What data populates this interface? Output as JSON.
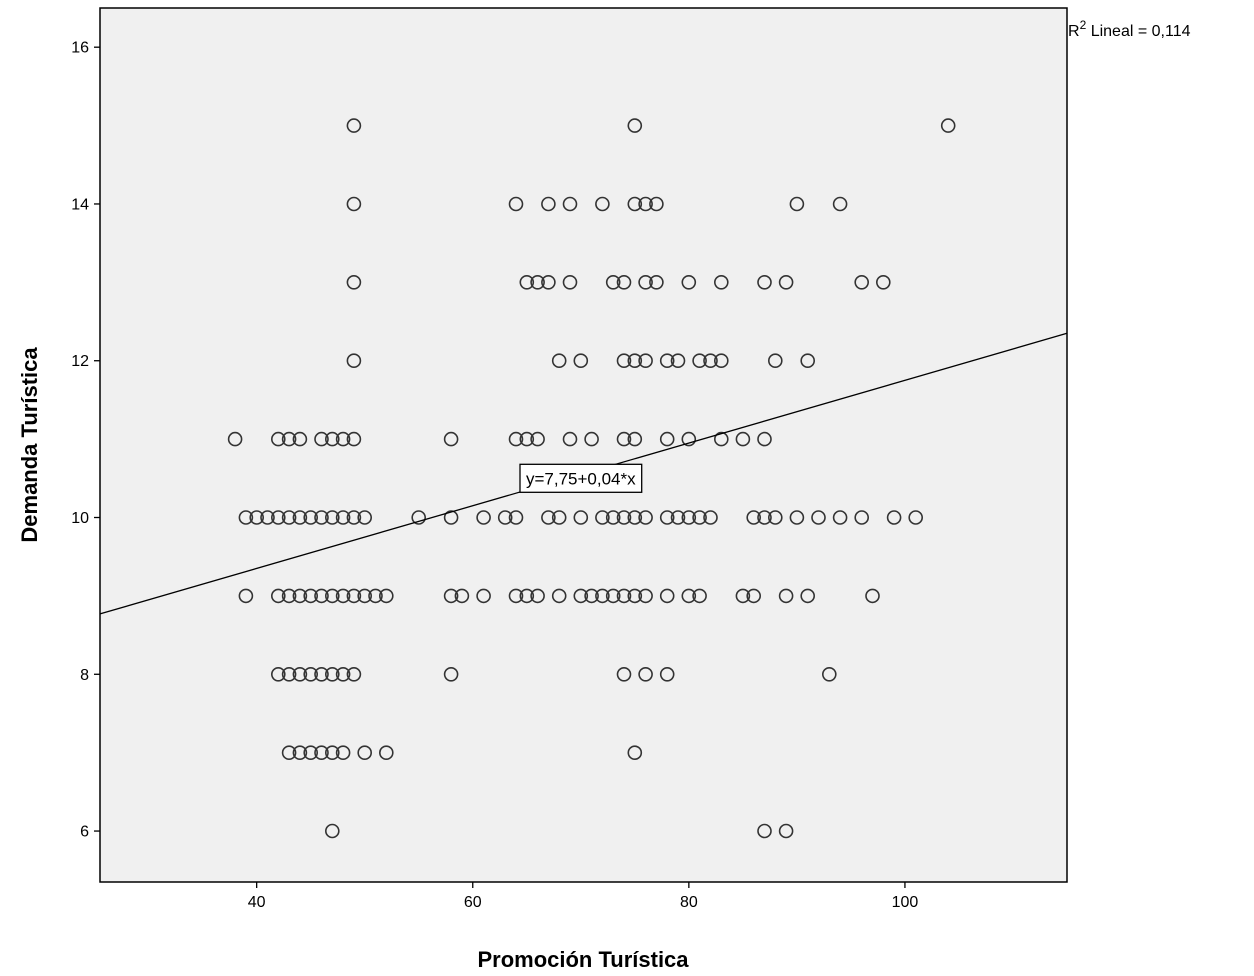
{
  "chart_data": {
    "type": "scatter",
    "title": "",
    "xlabel": "Promoción Turística",
    "ylabel": "Demanda Turística",
    "xlim": [
      25.5,
      115
    ],
    "ylim": [
      5.35,
      16.5
    ],
    "xticks": [
      40,
      60,
      80,
      100
    ],
    "yticks": [
      6,
      8,
      10,
      12,
      14,
      16
    ],
    "xtick_labels": [
      "40",
      "60",
      "80",
      "100"
    ],
    "ytick_labels": [
      "6",
      "8",
      "10",
      "12",
      "14",
      "16"
    ],
    "grid": false,
    "plot_background": "#f0f0f0",
    "marker_color": "#333333",
    "fit_line": {
      "intercept": 7.75,
      "slope": 0.04,
      "equation_label": "y=7,75+0,04*x",
      "label_x": 70,
      "label_y": 10.5
    },
    "r2_label": {
      "prefix": "R",
      "superscript": "2",
      "suffix": " Lineal = 0,114"
    },
    "points": [
      [
        49,
        15
      ],
      [
        75,
        15
      ],
      [
        104,
        15
      ],
      [
        49,
        14
      ],
      [
        64,
        14
      ],
      [
        67,
        14
      ],
      [
        69,
        14
      ],
      [
        72,
        14
      ],
      [
        75,
        14
      ],
      [
        76,
        14
      ],
      [
        77,
        14
      ],
      [
        90,
        14
      ],
      [
        94,
        14
      ],
      [
        49,
        13
      ],
      [
        65,
        13
      ],
      [
        66,
        13
      ],
      [
        67,
        13
      ],
      [
        69,
        13
      ],
      [
        73,
        13
      ],
      [
        74,
        13
      ],
      [
        76,
        13
      ],
      [
        77,
        13
      ],
      [
        80,
        13
      ],
      [
        83,
        13
      ],
      [
        87,
        13
      ],
      [
        89,
        13
      ],
      [
        96,
        13
      ],
      [
        98,
        13
      ],
      [
        49,
        12
      ],
      [
        68,
        12
      ],
      [
        70,
        12
      ],
      [
        74,
        12
      ],
      [
        75,
        12
      ],
      [
        76,
        12
      ],
      [
        78,
        12
      ],
      [
        79,
        12
      ],
      [
        81,
        12
      ],
      [
        82,
        12
      ],
      [
        83,
        12
      ],
      [
        88,
        12
      ],
      [
        91,
        12
      ],
      [
        38,
        11
      ],
      [
        42,
        11
      ],
      [
        43,
        11
      ],
      [
        44,
        11
      ],
      [
        46,
        11
      ],
      [
        47,
        11
      ],
      [
        48,
        11
      ],
      [
        49,
        11
      ],
      [
        58,
        11
      ],
      [
        64,
        11
      ],
      [
        65,
        11
      ],
      [
        66,
        11
      ],
      [
        69,
        11
      ],
      [
        71,
        11
      ],
      [
        74,
        11
      ],
      [
        75,
        11
      ],
      [
        78,
        11
      ],
      [
        80,
        11
      ],
      [
        83,
        11
      ],
      [
        85,
        11
      ],
      [
        87,
        11
      ],
      [
        39,
        10
      ],
      [
        40,
        10
      ],
      [
        41,
        10
      ],
      [
        42,
        10
      ],
      [
        43,
        10
      ],
      [
        44,
        10
      ],
      [
        45,
        10
      ],
      [
        46,
        10
      ],
      [
        47,
        10
      ],
      [
        48,
        10
      ],
      [
        49,
        10
      ],
      [
        50,
        10
      ],
      [
        55,
        10
      ],
      [
        58,
        10
      ],
      [
        61,
        10
      ],
      [
        63,
        10
      ],
      [
        64,
        10
      ],
      [
        67,
        10
      ],
      [
        68,
        10
      ],
      [
        70,
        10
      ],
      [
        72,
        10
      ],
      [
        73,
        10
      ],
      [
        74,
        10
      ],
      [
        75,
        10
      ],
      [
        76,
        10
      ],
      [
        78,
        10
      ],
      [
        79,
        10
      ],
      [
        80,
        10
      ],
      [
        81,
        10
      ],
      [
        82,
        10
      ],
      [
        86,
        10
      ],
      [
        87,
        10
      ],
      [
        88,
        10
      ],
      [
        90,
        10
      ],
      [
        92,
        10
      ],
      [
        94,
        10
      ],
      [
        96,
        10
      ],
      [
        99,
        10
      ],
      [
        101,
        10
      ],
      [
        39,
        9
      ],
      [
        42,
        9
      ],
      [
        43,
        9
      ],
      [
        44,
        9
      ],
      [
        45,
        9
      ],
      [
        46,
        9
      ],
      [
        47,
        9
      ],
      [
        48,
        9
      ],
      [
        49,
        9
      ],
      [
        50,
        9
      ],
      [
        51,
        9
      ],
      [
        52,
        9
      ],
      [
        58,
        9
      ],
      [
        59,
        9
      ],
      [
        61,
        9
      ],
      [
        64,
        9
      ],
      [
        65,
        9
      ],
      [
        66,
        9
      ],
      [
        68,
        9
      ],
      [
        70,
        9
      ],
      [
        71,
        9
      ],
      [
        72,
        9
      ],
      [
        73,
        9
      ],
      [
        74,
        9
      ],
      [
        75,
        9
      ],
      [
        76,
        9
      ],
      [
        78,
        9
      ],
      [
        80,
        9
      ],
      [
        81,
        9
      ],
      [
        85,
        9
      ],
      [
        86,
        9
      ],
      [
        89,
        9
      ],
      [
        91,
        9
      ],
      [
        97,
        9
      ],
      [
        42,
        8
      ],
      [
        43,
        8
      ],
      [
        44,
        8
      ],
      [
        45,
        8
      ],
      [
        46,
        8
      ],
      [
        47,
        8
      ],
      [
        48,
        8
      ],
      [
        49,
        8
      ],
      [
        58,
        8
      ],
      [
        74,
        8
      ],
      [
        76,
        8
      ],
      [
        78,
        8
      ],
      [
        93,
        8
      ],
      [
        43,
        7
      ],
      [
        44,
        7
      ],
      [
        45,
        7
      ],
      [
        46,
        7
      ],
      [
        47,
        7
      ],
      [
        48,
        7
      ],
      [
        50,
        7
      ],
      [
        52,
        7
      ],
      [
        75,
        7
      ],
      [
        47,
        6
      ],
      [
        87,
        6
      ],
      [
        89,
        6
      ]
    ]
  }
}
